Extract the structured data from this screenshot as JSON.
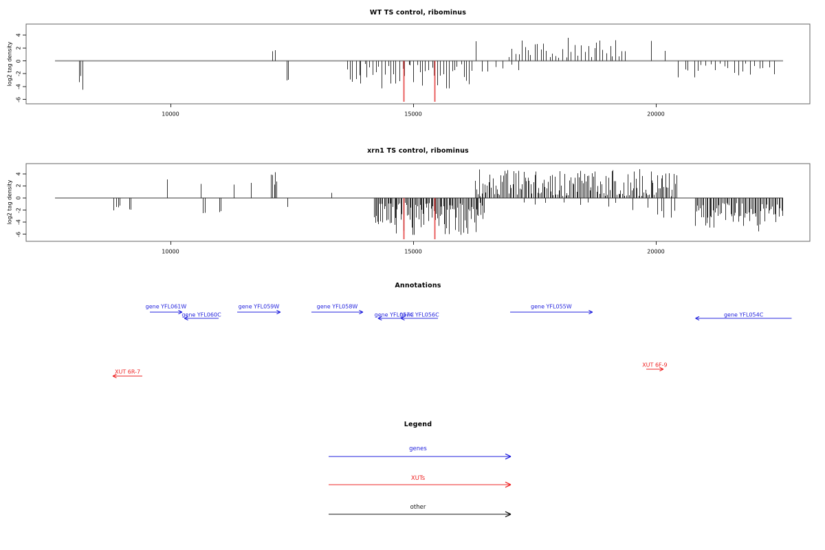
{
  "chart_data": {
    "type": "bar",
    "subtype": "genome-coverage-tracks",
    "x_axis": {
      "ticks": [
        10000,
        15000,
        20000
      ],
      "xlim": [
        7030,
        23170
      ],
      "data_span": [
        7620,
        22620
      ]
    },
    "panels": [
      {
        "title": "WT TS control, ribominus",
        "ylabel": "log2 tag density",
        "yticks": [
          4,
          2,
          0,
          -2,
          -4,
          -6
        ],
        "ylim": [
          -6.7,
          5.7
        ],
        "red_marker_lines": [
          14800,
          15440
        ],
        "seed": 7,
        "bar_clusters": [
          {
            "from": 8075,
            "to": 8205,
            "dir": "down",
            "count": 3,
            "mag": [
              1.5,
              4.5
            ]
          },
          {
            "from": 12090,
            "to": 12170,
            "dir": "up",
            "count": 2,
            "mag": [
              1.0,
              2.0
            ]
          },
          {
            "from": 12350,
            "to": 12460,
            "dir": "down",
            "count": 2,
            "mag": [
              2.8,
              3.6
            ]
          },
          {
            "from": 13600,
            "to": 16250,
            "dir": "down",
            "count": 44,
            "mag": [
              0.5,
              4.3
            ]
          },
          {
            "from": 16280,
            "to": 16300,
            "dir": "up",
            "count": 1,
            "mag": [
              3.0,
              3.2
            ]
          },
          {
            "from": 16310,
            "to": 17200,
            "dir": "down",
            "count": 6,
            "mag": [
              0.5,
              1.7
            ]
          },
          {
            "from": 16940,
            "to": 19400,
            "dir": "up",
            "count": 38,
            "mag": [
              0.4,
              3.6
            ]
          },
          {
            "from": 19890,
            "to": 19920,
            "dir": "up",
            "count": 1,
            "mag": [
              3.0,
              3.2
            ]
          },
          {
            "from": 20170,
            "to": 20200,
            "dir": "up",
            "count": 1,
            "mag": [
              1.4,
              1.6
            ]
          },
          {
            "from": 20440,
            "to": 22460,
            "dir": "down",
            "count": 22,
            "mag": [
              0.4,
              2.6
            ]
          }
        ]
      },
      {
        "title": "xrn1 TS control, ribominus",
        "ylabel": "log2 tag density",
        "yticks": [
          4,
          2,
          0,
          -2,
          -4,
          -6
        ],
        "ylim": [
          -7.2,
          5.7
        ],
        "red_marker_lines": [
          14800,
          15440
        ],
        "seed": 13,
        "bar_clusters": [
          {
            "from": 8800,
            "to": 8990,
            "dir": "down",
            "count": 4,
            "mag": [
              1.2,
              2.2
            ]
          },
          {
            "from": 9120,
            "to": 9190,
            "dir": "down",
            "count": 2,
            "mag": [
              1.8,
              2.2
            ]
          },
          {
            "from": 9925,
            "to": 9940,
            "dir": "up",
            "count": 1,
            "mag": [
              2.9,
              3.1
            ]
          },
          {
            "from": 10620,
            "to": 10640,
            "dir": "up",
            "count": 1,
            "mag": [
              2.2,
              2.4
            ]
          },
          {
            "from": 10650,
            "to": 10720,
            "dir": "down",
            "count": 2,
            "mag": [
              2.2,
              2.7
            ]
          },
          {
            "from": 10990,
            "to": 11060,
            "dir": "down",
            "count": 2,
            "mag": [
              2.0,
              2.4
            ]
          },
          {
            "from": 11300,
            "to": 11315,
            "dir": "up",
            "count": 1,
            "mag": [
              2.2,
              2.4
            ]
          },
          {
            "from": 11650,
            "to": 11665,
            "dir": "up",
            "count": 1,
            "mag": [
              2.5,
              2.7
            ]
          },
          {
            "from": 12055,
            "to": 12195,
            "dir": "up",
            "count": 5,
            "mag": [
              1.5,
              4.9
            ]
          },
          {
            "from": 12400,
            "to": 12430,
            "dir": "down",
            "count": 1,
            "mag": [
              1.4,
              1.6
            ]
          },
          {
            "from": 13300,
            "to": 13315,
            "dir": "up",
            "count": 1,
            "mag": [
              0.8,
              1.0
            ]
          },
          {
            "from": 14180,
            "to": 16470,
            "dir": "down",
            "count": 100,
            "mag": [
              0.8,
              6.2
            ]
          },
          {
            "from": 16260,
            "to": 20430,
            "dir": "up",
            "count": 150,
            "mag": [
              0.3,
              4.8
            ]
          },
          {
            "from": 17100,
            "to": 19900,
            "dir": "down",
            "count": 10,
            "mag": [
              0.7,
              2.2
            ]
          },
          {
            "from": 19950,
            "to": 20430,
            "dir": "down",
            "count": 5,
            "mag": [
              1.8,
              3.6
            ]
          },
          {
            "from": 20790,
            "to": 22620,
            "dir": "down",
            "count": 70,
            "mag": [
              0.8,
              5.6
            ]
          }
        ]
      }
    ],
    "annotations": {
      "title": "Annotations",
      "genes": [
        {
          "label": "gene YFL061W",
          "start": 9575,
          "end": 10240,
          "strand": "+"
        },
        {
          "label": "gene YFL060C",
          "start": 10285,
          "end": 10990,
          "strand": "-"
        },
        {
          "label": "gene YFL059W",
          "start": 11375,
          "end": 12265,
          "strand": "+"
        },
        {
          "label": "gene YFL058W",
          "start": 12905,
          "end": 13965,
          "strand": "+"
        },
        {
          "label": "gene YFL057C",
          "start": 14275,
          "end": 14940,
          "strand": "-"
        },
        {
          "label": "gene YFL056C",
          "start": 14745,
          "end": 15510,
          "strand": "-"
        },
        {
          "label": "gene YFL055W",
          "start": 16995,
          "end": 18695,
          "strand": "+"
        },
        {
          "label": "gene YFL054C",
          "start": 20815,
          "end": 22800,
          "strand": "-"
        }
      ],
      "xuts": [
        {
          "label": "XUT 6R-7",
          "start": 8810,
          "end": 9420,
          "strand": "-"
        },
        {
          "label": "XUT 6F-9",
          "start": 19800,
          "end": 20155,
          "strand": "+"
        }
      ]
    },
    "legend": {
      "title": "Legend",
      "items": [
        {
          "label": "genes",
          "color_key": "gene"
        },
        {
          "label": "XUTs",
          "color_key": "xut"
        },
        {
          "label": "other",
          "color_key": "other"
        }
      ]
    },
    "colors": {
      "gene": "#2222dd",
      "xut": "#ee2222",
      "other": "#111111",
      "bar": "#1a1a1a",
      "zero_line": "#999999",
      "red_marker": "#e64545",
      "box": "#606060",
      "axis": "#222222"
    }
  }
}
